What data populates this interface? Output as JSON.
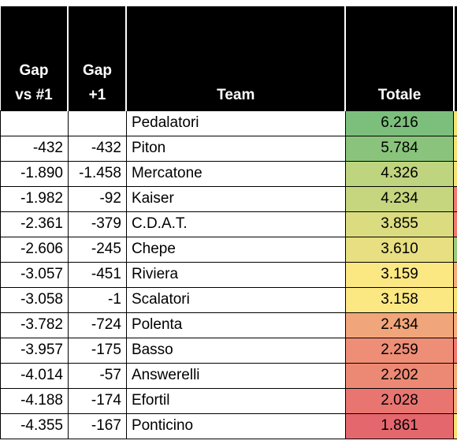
{
  "headers": {
    "gap_first_line1": "Gap",
    "gap_first_line2": "vs #1",
    "gap_prev_line1": "Gap",
    "gap_prev_line2": "+1",
    "team": "Team",
    "total": "Totale"
  },
  "rows": [
    {
      "gap_first": "",
      "gap_prev": "",
      "team": "Pedalatori",
      "total": "6.216",
      "color": "#7cbf7c",
      "edge": "#f7e27a"
    },
    {
      "gap_first": "-432",
      "gap_prev": "-432",
      "team": "Piton",
      "total": "5.784",
      "color": "#8ac47c",
      "edge": "#f7e27a"
    },
    {
      "gap_first": "-1.890",
      "gap_prev": "-1.458",
      "team": "Mercatone",
      "total": "4.326",
      "color": "#bfd47e",
      "edge": "#f7e27a"
    },
    {
      "gap_first": "-1.982",
      "gap_prev": "-92",
      "team": "Kaiser",
      "total": "4.234",
      "color": "#c5d67f",
      "edge": "#ef7b72"
    },
    {
      "gap_first": "-2.361",
      "gap_prev": "-379",
      "team": "C.D.A.T.",
      "total": "3.855",
      "color": "#dbdc80",
      "edge": "#ef7b72"
    },
    {
      "gap_first": "-2.606",
      "gap_prev": "-245",
      "team": "Chepe",
      "total": "3.610",
      "color": "#e7df81",
      "edge": "#9ccb7f"
    },
    {
      "gap_first": "-3.057",
      "gap_prev": "-451",
      "team": "Riviera",
      "total": "3.159",
      "color": "#fbe883",
      "edge": "#f3b07e"
    },
    {
      "gap_first": "-3.058",
      "gap_prev": "-1",
      "team": "Scalatori",
      "total": "3.158",
      "color": "#fbe883",
      "edge": "#f7e27a"
    },
    {
      "gap_first": "-3.782",
      "gap_prev": "-724",
      "team": "Polenta",
      "total": "2.434",
      "color": "#f1a57a",
      "edge": "#f3b07e"
    },
    {
      "gap_first": "-3.957",
      "gap_prev": "-175",
      "team": "Basso",
      "total": "2.259",
      "color": "#ee8e76",
      "edge": "#ef7b72"
    },
    {
      "gap_first": "-4.014",
      "gap_prev": "-57",
      "team": "Answerelli",
      "total": "2.202",
      "color": "#ec8974",
      "edge": "#f3b07e"
    },
    {
      "gap_first": "-4.188",
      "gap_prev": "-174",
      "team": "Efortil",
      "total": "2.028",
      "color": "#e97571",
      "edge": "#f3b07e"
    },
    {
      "gap_first": "-4.355",
      "gap_prev": "-167",
      "team": "Ponticino",
      "total": "1.861",
      "color": "#e5676e",
      "edge": "#f7e27a"
    }
  ]
}
